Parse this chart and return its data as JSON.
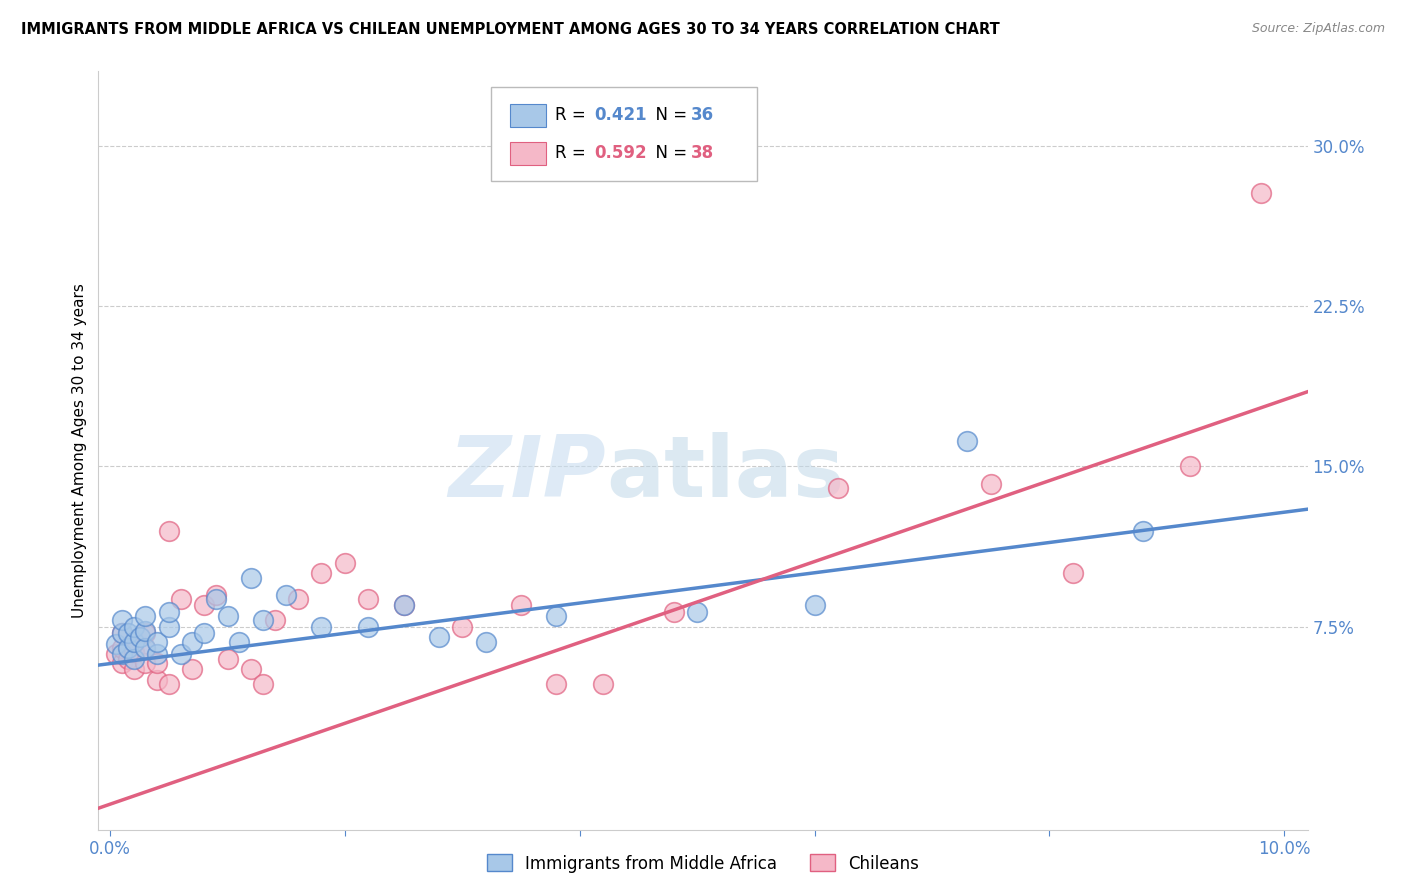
{
  "title": "IMMIGRANTS FROM MIDDLE AFRICA VS CHILEAN UNEMPLOYMENT AMONG AGES 30 TO 34 YEARS CORRELATION CHART",
  "source": "Source: ZipAtlas.com",
  "ylabel": "Unemployment Among Ages 30 to 34 years",
  "xlim": [
    -0.001,
    0.102
  ],
  "ylim": [
    -0.02,
    0.335
  ],
  "xticks": [
    0.0,
    0.02,
    0.04,
    0.06,
    0.08,
    0.1
  ],
  "xtick_labels": [
    "0.0%",
    "",
    "",
    "",
    "",
    "10.0%"
  ],
  "yticks_right": [
    0.075,
    0.15,
    0.225,
    0.3
  ],
  "ytick_labels_right": [
    "7.5%",
    "15.0%",
    "22.5%",
    "30.0%"
  ],
  "color_blue": "#a8c8e8",
  "color_pink": "#f5b8c8",
  "color_blue_dark": "#5588cc",
  "color_pink_dark": "#e06080",
  "watermark_zip": "ZIP",
  "watermark_atlas": "atlas",
  "blue_x": [
    0.0005,
    0.001,
    0.001,
    0.001,
    0.0015,
    0.0015,
    0.002,
    0.002,
    0.002,
    0.0025,
    0.003,
    0.003,
    0.003,
    0.004,
    0.004,
    0.005,
    0.005,
    0.006,
    0.007,
    0.008,
    0.009,
    0.01,
    0.011,
    0.012,
    0.013,
    0.015,
    0.018,
    0.022,
    0.025,
    0.028,
    0.032,
    0.038,
    0.05,
    0.06,
    0.073,
    0.088
  ],
  "blue_y": [
    0.067,
    0.062,
    0.072,
    0.078,
    0.065,
    0.072,
    0.06,
    0.068,
    0.075,
    0.07,
    0.065,
    0.073,
    0.08,
    0.062,
    0.068,
    0.075,
    0.082,
    0.062,
    0.068,
    0.072,
    0.088,
    0.08,
    0.068,
    0.098,
    0.078,
    0.09,
    0.075,
    0.075,
    0.085,
    0.07,
    0.068,
    0.08,
    0.082,
    0.085,
    0.162,
    0.12
  ],
  "pink_x": [
    0.0005,
    0.001,
    0.001,
    0.001,
    0.0015,
    0.002,
    0.002,
    0.002,
    0.003,
    0.003,
    0.003,
    0.004,
    0.004,
    0.005,
    0.005,
    0.006,
    0.007,
    0.008,
    0.009,
    0.01,
    0.012,
    0.013,
    0.014,
    0.016,
    0.018,
    0.02,
    0.022,
    0.025,
    0.03,
    0.035,
    0.038,
    0.042,
    0.048,
    0.062,
    0.075,
    0.082,
    0.092,
    0.098
  ],
  "pink_y": [
    0.062,
    0.058,
    0.065,
    0.072,
    0.06,
    0.055,
    0.063,
    0.068,
    0.058,
    0.065,
    0.072,
    0.05,
    0.058,
    0.048,
    0.12,
    0.088,
    0.055,
    0.085,
    0.09,
    0.06,
    0.055,
    0.048,
    0.078,
    0.088,
    0.1,
    0.105,
    0.088,
    0.085,
    0.075,
    0.085,
    0.048,
    0.048,
    0.082,
    0.14,
    0.142,
    0.1,
    0.15,
    0.278
  ],
  "blue_line_x": [
    -0.001,
    0.102
  ],
  "blue_line_y": [
    0.057,
    0.13
  ],
  "pink_line_x": [
    -0.001,
    0.102
  ],
  "pink_line_y": [
    -0.01,
    0.185
  ]
}
